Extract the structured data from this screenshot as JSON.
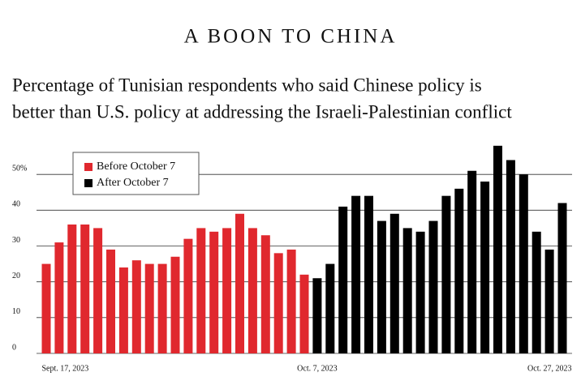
{
  "chart_data": {
    "type": "bar",
    "title": "A BOON TO CHINA",
    "subtitle": [
      "Percentage of Tunisian respondents who said Chinese policy is",
      "better than U.S. policy at addressing the Israeli-Palestinian conflict"
    ],
    "categories": [
      "Sept. 17, 2023",
      null,
      null,
      null,
      null,
      null,
      null,
      null,
      null,
      null,
      null,
      null,
      null,
      null,
      null,
      null,
      null,
      null,
      null,
      null,
      null,
      "Oct. 7, 2023",
      null,
      null,
      null,
      null,
      null,
      null,
      null,
      null,
      null,
      null,
      null,
      null,
      null,
      null,
      null,
      null,
      null,
      null,
      "Oct. 27, 2023"
    ],
    "series": [
      {
        "name": "Before October 7",
        "color": "#e0282e",
        "values": [
          25,
          31,
          36,
          36,
          35,
          29,
          24,
          26,
          25,
          25,
          27,
          32,
          35,
          34,
          35,
          39,
          35,
          33,
          28,
          29,
          22,
          null,
          null,
          null,
          null,
          null,
          null,
          null,
          null,
          null,
          null,
          null,
          null,
          null,
          null,
          null,
          null,
          null,
          null,
          null,
          null
        ]
      },
      {
        "name": "After October 7",
        "color": "#000000",
        "values": [
          null,
          null,
          null,
          null,
          null,
          null,
          null,
          null,
          null,
          null,
          null,
          null,
          null,
          null,
          null,
          null,
          null,
          null,
          null,
          null,
          null,
          21,
          25,
          41,
          44,
          44,
          37,
          39,
          35,
          34,
          37,
          44,
          46,
          51,
          48,
          58,
          54,
          50,
          34,
          29,
          42
        ]
      }
    ],
    "ylim": [
      0,
      60
    ],
    "yticks": [
      0,
      10,
      20,
      30,
      40,
      {
        "value": 50,
        "label": "50%"
      }
    ],
    "grid": true
  }
}
